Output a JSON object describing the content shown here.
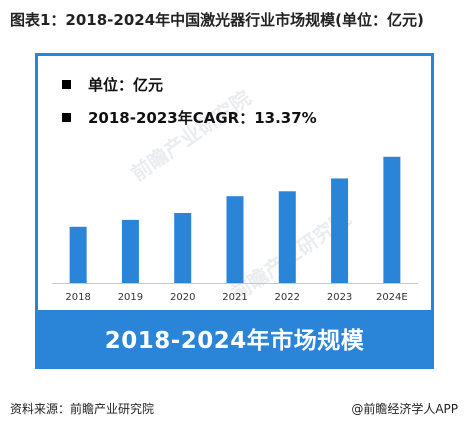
{
  "header": {
    "title": "图表1：2018-2024年中国激光器行业市场规模(单位：亿元)"
  },
  "legend_notes": [
    {
      "text": "单位：亿元"
    },
    {
      "text": "2018-2023年CAGR：13.37%"
    }
  ],
  "banner": {
    "text": "2018-2024年市场规模"
  },
  "footer": {
    "source": "资料来源：前瞻产业研究院",
    "brand": "@前瞻经济学人APP"
  },
  "watermark": {
    "text": "前瞻产业研究院"
  },
  "colors": {
    "bar": "#2a84d8",
    "frame": "#2a84d8",
    "axis": "#c8c8c8"
  },
  "chart_data": {
    "type": "bar",
    "categories": [
      "2018",
      "2019",
      "2020",
      "2021",
      "2022",
      "2023",
      "2024E"
    ],
    "values": [
      57,
      64,
      71,
      88,
      93,
      106,
      128
    ],
    "ylim": [
      0,
      145
    ],
    "grid": false,
    "data_labels": false
  }
}
